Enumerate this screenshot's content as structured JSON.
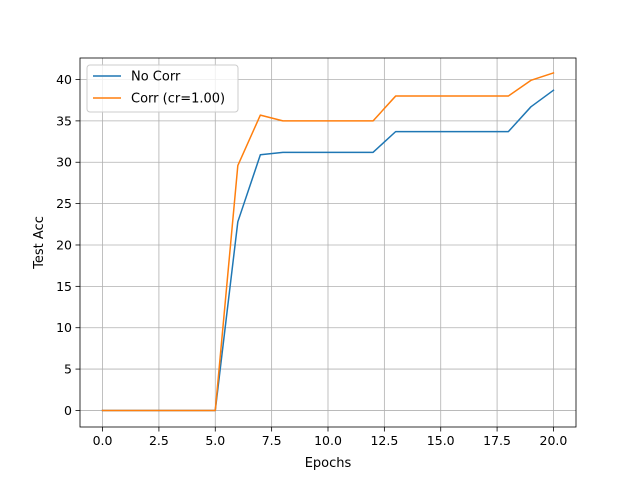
{
  "chart_data": {
    "type": "line",
    "title": "",
    "xlabel": "Epochs",
    "ylabel": "Test Acc",
    "xlim": [
      -1,
      21
    ],
    "ylim": [
      -2,
      42.6
    ],
    "xticks": [
      0,
      2.5,
      5,
      7.5,
      10,
      12.5,
      15,
      17.5,
      20
    ],
    "xtick_labels": [
      "0.0",
      "2.5",
      "5.0",
      "7.5",
      "10.0",
      "12.5",
      "15.0",
      "17.5",
      "20.0"
    ],
    "yticks": [
      0,
      5,
      10,
      15,
      20,
      25,
      30,
      35,
      40
    ],
    "ytick_labels": [
      "0",
      "5",
      "10",
      "15",
      "20",
      "25",
      "30",
      "35",
      "40"
    ],
    "grid": true,
    "legend_position": "top-left",
    "x": [
      0,
      1,
      2,
      3,
      4,
      5,
      6,
      7,
      8,
      9,
      10,
      11,
      12,
      13,
      14,
      15,
      16,
      17,
      18,
      19,
      20
    ],
    "series": [
      {
        "name": "No Corr",
        "color": "#1f77b4",
        "values": [
          0,
          0,
          0,
          0,
          0,
          0,
          22.8,
          30.9,
          31.2,
          31.2,
          31.2,
          31.2,
          31.2,
          33.7,
          33.7,
          33.7,
          33.7,
          33.7,
          33.7,
          36.7,
          38.7
        ]
      },
      {
        "name": "Corr (cr=1.00)",
        "color": "#ff7f0e",
        "values": [
          0,
          0,
          0,
          0,
          0,
          0,
          29.6,
          35.7,
          35.0,
          35.0,
          35.0,
          35.0,
          35.0,
          38.0,
          38.0,
          38.0,
          38.0,
          38.0,
          38.0,
          39.9,
          40.8
        ]
      }
    ]
  }
}
